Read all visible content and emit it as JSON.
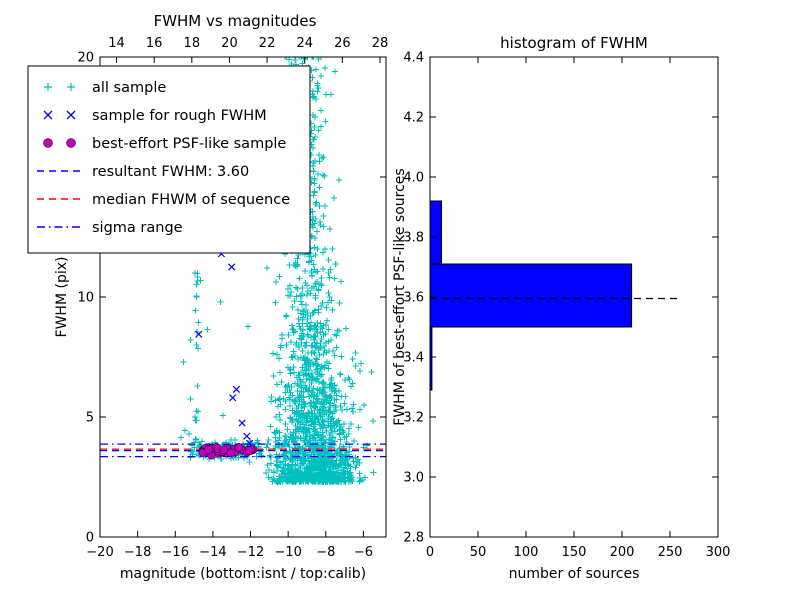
{
  "chart_data": [
    {
      "type": "scatter",
      "title": "FWHM vs magnitudes",
      "xlabel": "magnitude (bottom:isnt / top:calib)",
      "ylabel": "FWHM (pix)",
      "xlim": [
        -20,
        -4.8
      ],
      "ylim": [
        0,
        20
      ],
      "x_ticks": [
        -20,
        -18,
        -16,
        -14,
        -12,
        -10,
        -8,
        -6
      ],
      "x_tick_labels": [
        "−20",
        "−18",
        "−16",
        "−14",
        "−12",
        "−10",
        "−8",
        "−6"
      ],
      "y_ticks": [
        0,
        5,
        10,
        15,
        20
      ],
      "y_tick_labels": [
        "0",
        "5",
        "10",
        "15",
        "20"
      ],
      "top_axis": {
        "lim": [
          13.12,
          28.32
        ],
        "ticks": [
          14,
          16,
          18,
          20,
          22,
          24,
          26,
          28
        ],
        "labels": [
          "14",
          "16",
          "18",
          "20",
          "22",
          "24",
          "26",
          "28"
        ]
      },
      "series": [
        {
          "name": "all sample",
          "marker": "plus",
          "color": "#00bfbf",
          "clusters": [
            {
              "n": 150,
              "mag": {
                "type": "uniform",
                "min": -15.2,
                "max": -11.4
              },
              "fwhm": {
                "type": "normal",
                "mu": 3.62,
                "sigma": 0.18
              }
            },
            {
              "n": 22,
              "mag": {
                "type": "normal",
                "mu": -14.85,
                "sigma": 0.07,
                "min": -15.1,
                "max": -14.6
              },
              "fwhm": {
                "type": "uniform",
                "min": 3.8,
                "max": 11.3
              }
            },
            {
              "n": 1600,
              "mag": {
                "type": "normal",
                "mu": -8.7,
                "sigma": 1.05,
                "min": -11.2,
                "max": -5.3
              },
              "fwhm": {
                "type": "funnel",
                "base": 2.3,
                "scale": 1.9,
                "boost": 2.8,
                "center": -9.2,
                "width": 0.9,
                "pow": 1.7,
                "max": 20
              }
            },
            {
              "n": 130,
              "mag": {
                "type": "normal",
                "mu": -9.0,
                "sigma": 0.55,
                "min": -10.5,
                "max": -7.2
              },
              "fwhm": {
                "type": "uniform",
                "min": 11,
                "max": 20
              }
            },
            {
              "n": 25,
              "mag": {
                "type": "uniform",
                "min": -16.0,
                "max": -5.5
              },
              "fwhm": {
                "type": "uniform",
                "min": 1.8,
                "max": 20
              }
            }
          ]
        },
        {
          "name": "sample for rough FWHM",
          "marker": "x",
          "color": "#0000ff",
          "points": [
            [
              -14.75,
              8.45
            ],
            [
              -13.55,
              11.8
            ],
            [
              -13.0,
              11.25
            ],
            [
              -12.75,
              6.15
            ],
            [
              -12.95,
              5.8
            ],
            [
              -12.45,
              4.75
            ],
            [
              -12.2,
              4.2
            ],
            [
              -12.05,
              3.9
            ],
            [
              -11.9,
              3.75
            ]
          ]
        },
        {
          "name": "best-effort PSF-like sample",
          "marker": "circle",
          "color": "#bf00bf",
          "clusters": [
            {
              "n": 38,
              "mag": {
                "type": "uniform",
                "min": -14.55,
                "max": -11.85
              },
              "fwhm": {
                "type": "normal",
                "mu": 3.6,
                "sigma": 0.07
              }
            }
          ]
        }
      ],
      "lines": [
        {
          "name": "resultant FWHM",
          "y": 3.6,
          "color": "#0000ff",
          "style": "dashed"
        },
        {
          "name": "median FHWM of sequence",
          "y": 3.66,
          "color": "#ff0000",
          "style": "dashed"
        },
        {
          "name": "sigma low",
          "y": 3.35,
          "color": "#0000ff",
          "style": "dashdot"
        },
        {
          "name": "sigma high",
          "y": 3.87,
          "color": "#0000ff",
          "style": "dashdot"
        }
      ],
      "legend": {
        "items": [
          {
            "label": "all sample",
            "marker": "plus",
            "color": "#00bfbf"
          },
          {
            "label": "sample for rough FWHM",
            "marker": "x",
            "color": "#0000ff"
          },
          {
            "label": "best-effort PSF-like sample",
            "marker": "circle",
            "color": "#bf00bf"
          },
          {
            "label": "resultant FWHM: 3.60",
            "marker": "dashed-line",
            "color": "#0000ff"
          },
          {
            "label": "median FHWM of sequence",
            "marker": "dashed-line",
            "color": "#ff0000"
          },
          {
            "label": "sigma range",
            "marker": "dashdot-line",
            "color": "#0000ff"
          }
        ]
      }
    },
    {
      "type": "bar",
      "orientation": "horizontal",
      "title": "histogram of FWHM",
      "xlabel": "number of sources",
      "ylabel": "FWHM of best-effort PSF-like sources",
      "xlim": [
        0,
        300
      ],
      "ylim": [
        2.8,
        4.4
      ],
      "x_ticks": [
        0,
        50,
        100,
        150,
        200,
        250,
        300
      ],
      "x_tick_labels": [
        "0",
        "50",
        "100",
        "150",
        "200",
        "250",
        "300"
      ],
      "y_ticks": [
        2.8,
        3.0,
        3.2,
        3.4,
        3.6,
        3.8,
        4.0,
        4.2,
        4.4
      ],
      "y_tick_labels": [
        "2.8",
        "3.0",
        "3.2",
        "3.4",
        "3.6",
        "3.8",
        "4.0",
        "4.2",
        "4.4"
      ],
      "bins": [
        {
          "from": 3.29,
          "to": 3.5,
          "count": 2
        },
        {
          "from": 3.5,
          "to": 3.71,
          "count": 210
        },
        {
          "from": 3.71,
          "to": 3.92,
          "count": 12
        }
      ],
      "bar_color": "#0000ff",
      "median_line": {
        "y": 3.595,
        "x_start": 0,
        "x_end": 260,
        "color": "#000000",
        "style": "dashed"
      }
    }
  ]
}
